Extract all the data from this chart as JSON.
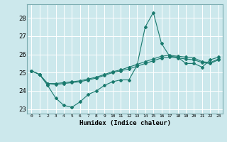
{
  "xlabel": "Humidex (Indice chaleur)",
  "bg_color": "#cce8ec",
  "line_color": "#1a7a6e",
  "grid_color": "#ffffff",
  "xlim": [
    -0.5,
    23.5
  ],
  "ylim": [
    22.75,
    28.75
  ],
  "yticks": [
    23,
    24,
    25,
    26,
    27,
    28
  ],
  "xticks": [
    0,
    1,
    2,
    3,
    4,
    5,
    6,
    7,
    8,
    9,
    10,
    11,
    12,
    13,
    14,
    15,
    16,
    17,
    18,
    19,
    20,
    21,
    22,
    23
  ],
  "line1": [
    25.1,
    24.9,
    24.3,
    23.6,
    23.2,
    23.1,
    23.4,
    23.8,
    24.0,
    24.3,
    24.5,
    24.6,
    24.6,
    25.4,
    27.5,
    28.3,
    26.6,
    25.9,
    25.85,
    25.5,
    25.5,
    25.3,
    25.7,
    25.85
  ],
  "line2": [
    25.1,
    24.9,
    24.4,
    24.4,
    24.45,
    24.5,
    24.55,
    24.65,
    24.75,
    24.9,
    25.05,
    25.15,
    25.3,
    25.45,
    25.6,
    25.75,
    25.9,
    25.95,
    25.9,
    25.85,
    25.8,
    25.6,
    25.55,
    25.75
  ],
  "line3": [
    25.1,
    24.9,
    24.4,
    24.35,
    24.4,
    24.45,
    24.5,
    24.6,
    24.7,
    24.85,
    25.0,
    25.1,
    25.2,
    25.35,
    25.5,
    25.65,
    25.8,
    25.85,
    25.8,
    25.75,
    25.7,
    25.55,
    25.5,
    25.7
  ]
}
